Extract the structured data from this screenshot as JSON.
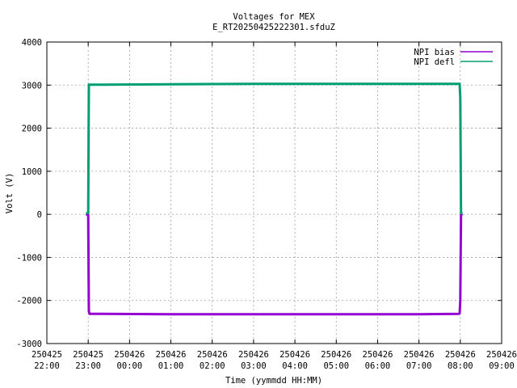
{
  "chart_data": {
    "type": "line",
    "title": "Voltages for MEX",
    "subtitle": "E_RT20250425222301.sfduZ",
    "xlabel": "Time (yymmdd HH:MM)",
    "ylabel": "Volt (V)",
    "ylim": [
      -3000,
      4000
    ],
    "yticks": [
      4000,
      3000,
      2000,
      1000,
      0,
      -1000,
      -2000,
      -3000
    ],
    "xlim": [
      "2025-04-25 22:00",
      "2025-04-26 09:00"
    ],
    "xticks": [
      {
        "t": "2025-04-25 22:00",
        "date": "250425",
        "time": "22:00"
      },
      {
        "t": "2025-04-25 23:00",
        "date": "250425",
        "time": "23:00"
      },
      {
        "t": "2025-04-26 00:00",
        "date": "250426",
        "time": "00:00"
      },
      {
        "t": "2025-04-26 01:00",
        "date": "250426",
        "time": "01:00"
      },
      {
        "t": "2025-04-26 02:00",
        "date": "250426",
        "time": "02:00"
      },
      {
        "t": "2025-04-26 03:00",
        "date": "250426",
        "time": "03:00"
      },
      {
        "t": "2025-04-26 04:00",
        "date": "250426",
        "time": "04:00"
      },
      {
        "t": "2025-04-26 05:00",
        "date": "250426",
        "time": "05:00"
      },
      {
        "t": "2025-04-26 06:00",
        "date": "250426",
        "time": "06:00"
      },
      {
        "t": "2025-04-26 07:00",
        "date": "250426",
        "time": "07:00"
      },
      {
        "t": "2025-04-26 08:00",
        "date": "250426",
        "time": "08:00"
      },
      {
        "t": "2025-04-26 09:00",
        "date": "250426",
        "time": "09:00"
      }
    ],
    "grid": true,
    "legend_position": "top-right",
    "series": [
      {
        "name": "NPI bias",
        "color": "#9400d3",
        "x": [
          "2025-04-25 22:58",
          "2025-04-25 23:00",
          "2025-04-25 23:01",
          "2025-04-25 23:02",
          "2025-04-26 01:00",
          "2025-04-26 03:00",
          "2025-04-26 05:00",
          "2025-04-26 07:00",
          "2025-04-26 07:58",
          "2025-04-26 07:59",
          "2025-04-26 08:00",
          "2025-04-26 08:01",
          "2025-04-26 08:02"
        ],
        "y": [
          -10,
          -10,
          -2250,
          -2310,
          -2320,
          -2320,
          -2320,
          -2320,
          -2310,
          -2300,
          -2000,
          -10,
          -10
        ]
      },
      {
        "name": "NPI defl",
        "color": "#009e73",
        "x": [
          "2025-04-25 22:58",
          "2025-04-25 23:00",
          "2025-04-25 23:01",
          "2025-04-26 01:00",
          "2025-04-26 03:00",
          "2025-04-26 05:00",
          "2025-04-26 07:00",
          "2025-04-26 07:59",
          "2025-04-26 08:00",
          "2025-04-26 08:01",
          "2025-04-26 08:02"
        ],
        "y": [
          30,
          30,
          3010,
          3020,
          3030,
          3030,
          3030,
          3030,
          2700,
          30,
          30
        ]
      }
    ]
  }
}
